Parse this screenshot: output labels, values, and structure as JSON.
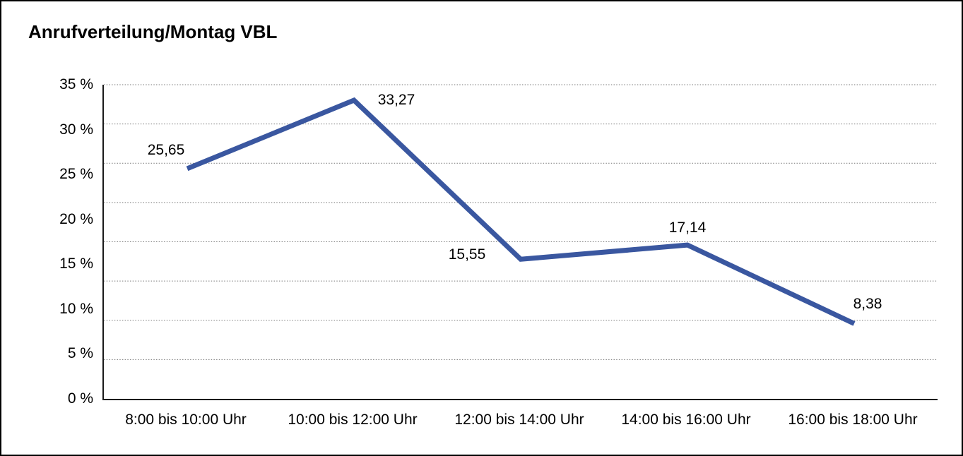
{
  "title": "Anrufverteilung/Montag VBL",
  "chart_data": {
    "type": "line",
    "title": "Anrufverteilung/Montag VBL",
    "categories": [
      "8:00 bis 10:00 Uhr",
      "10:00 bis 12:00 Uhr",
      "12:00 bis 14:00 Uhr",
      "14:00 bis 16:00 Uhr",
      "16:00 bis 18:00 Uhr"
    ],
    "series": [
      {
        "name": "Anrufverteilung Montag VBL",
        "values": [
          25.65,
          33.27,
          15.55,
          17.14,
          8.38
        ]
      }
    ],
    "value_labels": [
      "25,65",
      "33,27",
      "15,55",
      "17,14",
      "8,38"
    ],
    "value_label_placements": [
      "above-left",
      "right",
      "left",
      "above",
      "above-right"
    ],
    "xlabel": "",
    "ylabel": "",
    "y_tick_labels": [
      "35 %",
      "30 %",
      "25 %",
      "20 %",
      "15 %",
      "10 %",
      "5 %",
      "0 %"
    ],
    "ylim": [
      0,
      35
    ],
    "grid": "horizontal-dotted",
    "gridline_intervals": 8,
    "legend": "none",
    "colors": {
      "line": "#3A57A0",
      "axis": "#1a1a1a",
      "gridline": "#7a7a7a",
      "text": "#000000",
      "background": "#ffffff"
    }
  }
}
